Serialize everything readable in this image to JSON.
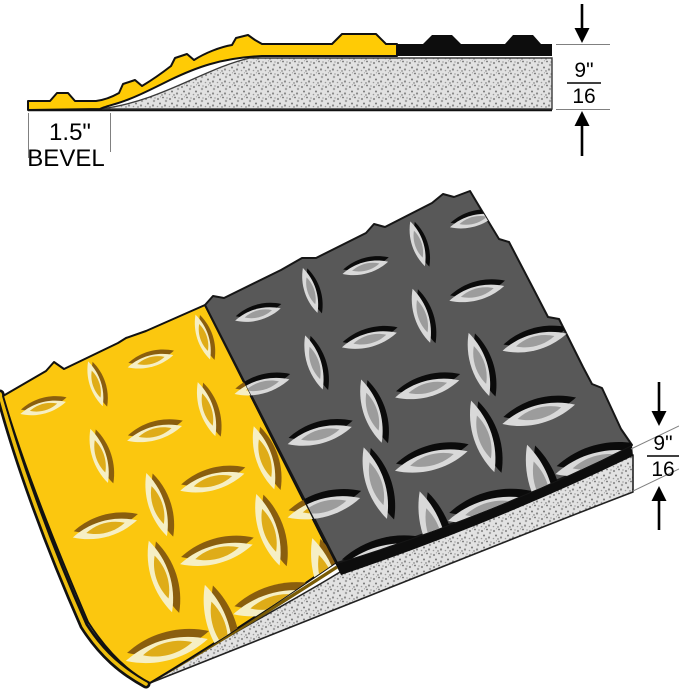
{
  "diagram": {
    "views": {
      "profile": {
        "name": "side profile with beveled edge",
        "bevel_width": "1.5\"",
        "bevel_label": "BEVEL",
        "thickness_fraction": {
          "numerator": "9\"",
          "denominator": "16"
        }
      },
      "perspective": {
        "name": "3d diamond plate mat",
        "thickness_fraction": {
          "numerator": "9\"",
          "denominator": "16"
        }
      }
    }
  },
  "colors": {
    "safety_yellow": "#FBC70F",
    "yellow_profile": "#FFCB05",
    "charcoal_gray": "#585858",
    "edge_black": "#0D0D0D",
    "granite_gray": "#E2E2E2",
    "yellow_edge_stripe": "#EDBE0E",
    "lens_brown": "#8A5E0E",
    "lens_cream": "#F6EFC4",
    "lens_gold": "#DFAC18",
    "lens_silver": "#D9D9D9",
    "lens_mid_gray": "#9C9C9C",
    "lens_black": "#0B0B0B",
    "bevel_underline": "#7A5C06",
    "annotation": "#000000",
    "extension_line": "#808080"
  }
}
